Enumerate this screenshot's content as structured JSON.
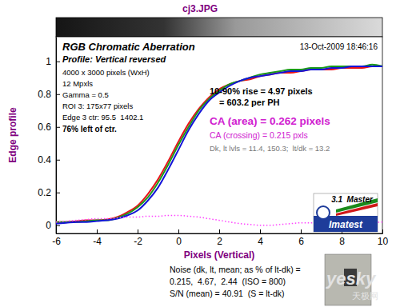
{
  "chart_data": {
    "type": "line",
    "title": "cj3.JPG",
    "x_label": "Pixels (Vertical)",
    "y_label": "Edge profile",
    "x": [
      -6,
      -5.5,
      -5,
      -4.5,
      -4,
      -3.5,
      -3,
      -2.5,
      -2,
      -1.5,
      -1,
      -0.5,
      0,
      0.5,
      1,
      1.5,
      2,
      2.5,
      3,
      3.5,
      4,
      4.5,
      5,
      5.5,
      6,
      6.5,
      7,
      7.5,
      8,
      8.5,
      9,
      9.5,
      10
    ],
    "series": [
      {
        "color": "#e8141a",
        "line_style": "solid",
        "values": [
          0.02,
          0.02,
          0.025,
          0.03,
          0.03,
          0.035,
          0.05,
          0.08,
          0.12,
          0.19,
          0.28,
          0.39,
          0.51,
          0.62,
          0.71,
          0.78,
          0.83,
          0.86,
          0.88,
          0.89,
          0.91,
          0.92,
          0.93,
          0.93,
          0.94,
          0.95,
          0.95,
          0.95,
          0.96,
          0.96,
          0.96,
          0.97,
          0.97
        ]
      },
      {
        "color": "#1a9a1a",
        "line_style": "solid",
        "values": [
          0.02,
          0.02,
          0.02,
          0.025,
          0.03,
          0.03,
          0.045,
          0.07,
          0.11,
          0.17,
          0.26,
          0.37,
          0.49,
          0.6,
          0.7,
          0.77,
          0.82,
          0.86,
          0.88,
          0.9,
          0.92,
          0.93,
          0.94,
          0.95,
          0.95,
          0.96,
          0.96,
          0.97,
          0.97,
          0.97,
          0.97,
          0.98,
          0.97
        ]
      },
      {
        "color": "#1414d8",
        "line_style": "solid",
        "values": [
          0.01,
          0.015,
          0.02,
          0.02,
          0.025,
          0.03,
          0.04,
          0.06,
          0.09,
          0.15,
          0.23,
          0.34,
          0.46,
          0.58,
          0.68,
          0.76,
          0.81,
          0.85,
          0.88,
          0.9,
          0.91,
          0.92,
          0.93,
          0.94,
          0.94,
          0.95,
          0.95,
          0.96,
          0.96,
          0.97,
          0.97,
          0.97,
          0.97
        ]
      },
      {
        "color": "#ff40ff",
        "line_style": "dotted",
        "values": [
          0.02,
          0.025,
          0.03,
          0.035,
          0.04,
          0.04,
          0.045,
          0.05,
          0.05,
          0.055,
          0.055,
          0.06,
          0.06,
          0.055,
          0.05,
          0.04,
          0.03,
          0.02,
          0.01,
          0.005,
          0,
          0,
          0.005,
          0.01,
          0.015,
          0.015,
          0.02,
          0.02,
          0.015,
          0.01,
          0.01,
          0.015,
          0.02
        ]
      }
    ],
    "xlim": [
      -6,
      10
    ],
    "xticks": [
      -6,
      -4,
      -2,
      0,
      2,
      4,
      6,
      8,
      10
    ],
    "ylim": [
      -0.05,
      1.15
    ],
    "yticks": [
      0,
      0.2,
      0.4,
      0.6,
      0.8,
      1
    ],
    "grid": false,
    "annotations": [
      "RGB Chromatic Aberration",
      "13-Oct-2009 18:46:16",
      "Profile: Vertical reversed",
      "4000 x 3000 pixels (WxH)",
      "12 Mpxls",
      "Gamma = 0.5",
      "ROI 3: 175x77 pixels",
      "Edge 3 ctr: 95.5  1402.1",
      "76% left of ctr.",
      "10-90% rise = 4.97 pixels",
      "= 603.2 per PH",
      "CA (area) = 0.262 pixels",
      "CA (crossing) = 0.215 pxls",
      "Dk, lt lvls = 11.4, 150.3;  lt/dk = 13.2"
    ],
    "logo": [
      "3.1  Master",
      "Imatest"
    ],
    "footer": [
      "Noise (dk, lt, mean; as % of lt-dk) =",
      "0.215,  4.67,  2.44  (ISO = 800)",
      "S/N (mean) = 40.91  (S = lt-dk)"
    ],
    "watermark": [
      "yesky",
      "天极网"
    ]
  }
}
